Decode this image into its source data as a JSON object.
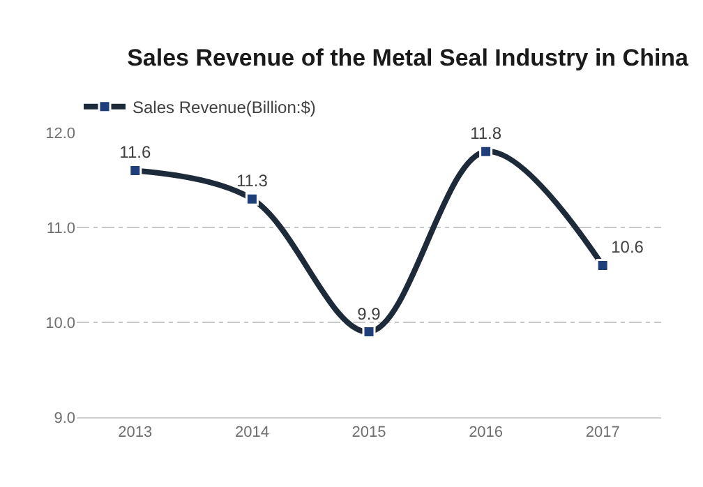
{
  "chart_data": {
    "type": "line",
    "title": "Sales Revenue of the Metal Seal Industry in China",
    "categories": [
      "2013",
      "2014",
      "2015",
      "2016",
      "2017"
    ],
    "series": [
      {
        "name": "Sales Revenue(Billion:$)",
        "color": "#1c2a3a",
        "values": [
          11.6,
          11.3,
          9.9,
          11.8,
          10.6
        ]
      }
    ],
    "ylim": [
      9.0,
      12.0
    ],
    "yticks": [
      {
        "value": 9,
        "label": "9.0"
      },
      {
        "value": 10,
        "label": "10.0"
      },
      {
        "value": 11,
        "label": "11.0"
      },
      {
        "value": 12,
        "label": "12.0"
      }
    ],
    "grid": "y",
    "legend": "top left",
    "marker": "square",
    "data_labels": true,
    "line_style": "solid"
  }
}
